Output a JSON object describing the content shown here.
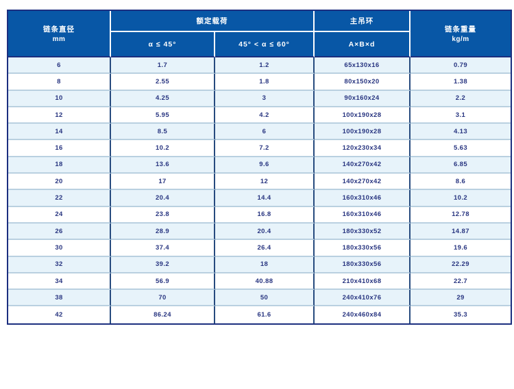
{
  "chart_data": {
    "type": "table",
    "header": {
      "diameter_title": "链条直径",
      "diameter_unit": "mm",
      "rated_load_title": "额定载荷",
      "rated_load_sub1": "α ≤ 45°",
      "rated_load_sub2": "45° < α ≤ 60°",
      "main_ring_title": "主吊环",
      "main_ring_sub": "A×B×d",
      "weight_title": "链条重量",
      "weight_unit": "kg/m"
    },
    "rows": [
      [
        "6",
        "1.7",
        "1.2",
        "65x130x16",
        "0.79"
      ],
      [
        "8",
        "2.55",
        "1.8",
        "80x150x20",
        "1.38"
      ],
      [
        "10",
        "4.25",
        "3",
        "90x160x24",
        "2.2"
      ],
      [
        "12",
        "5.95",
        "4.2",
        "100x190x28",
        "3.1"
      ],
      [
        "14",
        "8.5",
        "6",
        "100x190x28",
        "4.13"
      ],
      [
        "16",
        "10.2",
        "7.2",
        "120x230x34",
        "5.63"
      ],
      [
        "18",
        "13.6",
        "9.6",
        "140x270x42",
        "6.85"
      ],
      [
        "20",
        "17",
        "12",
        "140x270x42",
        "8.6"
      ],
      [
        "22",
        "20.4",
        "14.4",
        "160x310x46",
        "10.2"
      ],
      [
        "24",
        "23.8",
        "16.8",
        "160x310x46",
        "12.78"
      ],
      [
        "26",
        "28.9",
        "20.4",
        "180x330x52",
        "14.87"
      ],
      [
        "30",
        "37.4",
        "26.4",
        "180x330x56",
        "19.6"
      ],
      [
        "32",
        "39.2",
        "18",
        "180x330x56",
        "22.29"
      ],
      [
        "34",
        "56.9",
        "40.88",
        "210x410x68",
        "22.7"
      ],
      [
        "38",
        "70",
        "50",
        "240x410x76",
        "29"
      ],
      [
        "42",
        "86.24",
        "61.6",
        "240x460x84",
        "35.3"
      ]
    ]
  },
  "colors": {
    "header_bg": "#0857a6",
    "header_text": "#ffffff",
    "outer_border": "#1b2e7f",
    "column_divider": "#264a7e",
    "row_divider": "#b9d0e0",
    "row_alt_bg": "#e7f3fa",
    "row_bg": "#ffffff",
    "cell_text": "#283580"
  }
}
